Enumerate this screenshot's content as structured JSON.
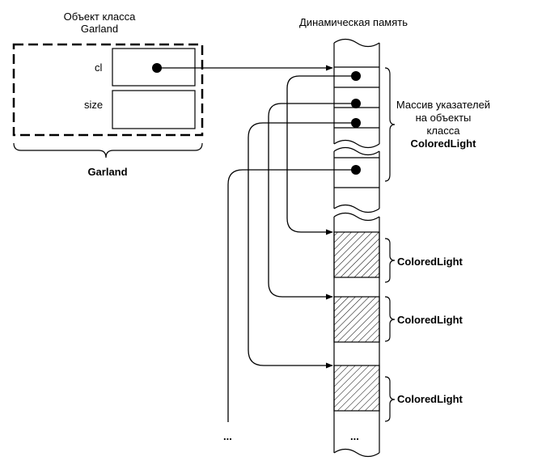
{
  "garland_object": {
    "caption_line1": "Объект класса",
    "caption_line2": "Garland",
    "field_cl": "cl",
    "field_size": "size",
    "bottom_label": "Garland"
  },
  "heap": {
    "title": "Динамическая память",
    "pointer_array_label_line1": "Массив указателей",
    "pointer_array_label_line2": "на объекты",
    "pointer_array_label_line3": "класса",
    "pointer_array_label_line4": "ColoredLight",
    "object_labels": [
      "ColoredLight",
      "ColoredLight",
      "ColoredLight"
    ],
    "ellipsis_heap": "...",
    "ellipsis_left": "..."
  }
}
